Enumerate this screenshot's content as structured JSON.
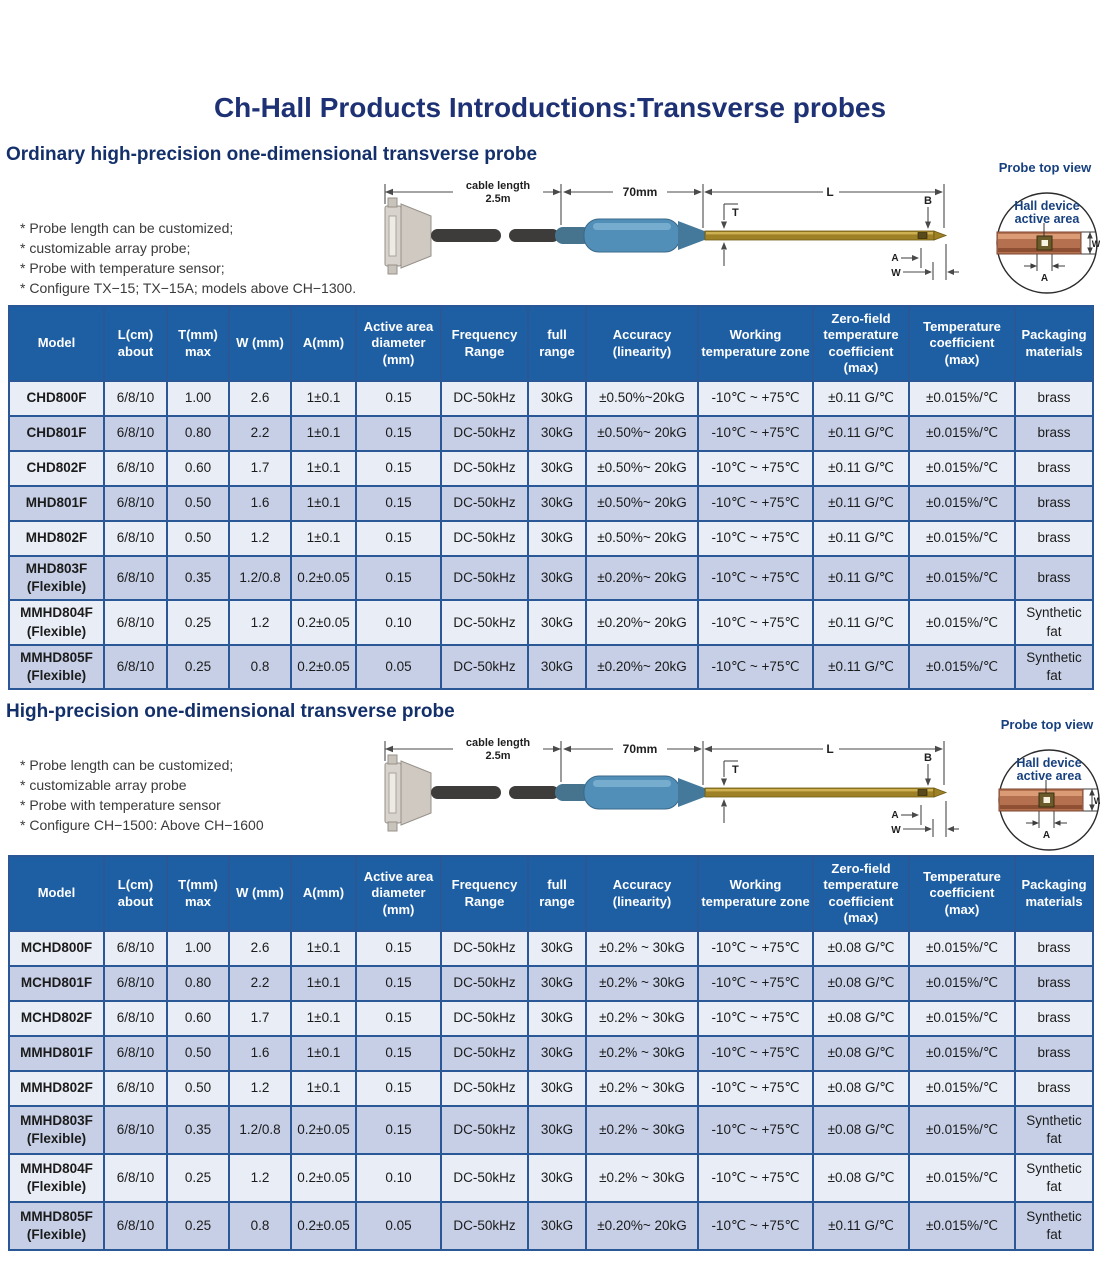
{
  "page": {
    "title": "Ch-Hall Products Introductions:Transverse probes"
  },
  "colors": {
    "title_navy": "#1d3174",
    "heading_navy": "#14306b",
    "table_header_blue": "#1e5fa4",
    "row_light": "#e9edf6",
    "row_dark": "#c6cfe6",
    "grid_blue": "#2a5796",
    "handle_blue": "#528fb8",
    "shaft_gold": "#9e8126",
    "copper_probe": "#b5714f"
  },
  "diagram": {
    "cable_length_line1": "cable length",
    "cable_length_line2": "2.5m",
    "handle_length": "70mm",
    "dim_L": "L",
    "dim_T": "T",
    "dim_B": "B",
    "dim_A": "A",
    "dim_W": "W",
    "top_view_label": "Probe top view",
    "hall_line1": "Hall device",
    "hall_line2": "active area",
    "tv_dim_W": "W",
    "tv_dim_A": "A"
  },
  "columns": [
    "Model",
    "L(cm) about",
    "T(mm) max",
    "W (mm)",
    "A(mm)",
    "Active area diameter (mm)",
    "Frequency Range",
    "full range",
    "Accuracy (linearity)",
    "Working temperature zone",
    "Zero-field temperature coefficient (max)",
    "Temperature coefficient (max)",
    "Packaging materials"
  ],
  "section1": {
    "heading": "Ordinary high-precision one-dimensional transverse probe",
    "notes": [
      "* Probe length can be customized;",
      "* customizable array probe;",
      "* Probe with temperature sensor;",
      "* Configure TX−15; TX−15A; models above CH−1300."
    ],
    "table": {
      "rows": [
        [
          "CHD800F",
          "6/8/10",
          "1.00",
          "2.6",
          "1±0.1",
          "0.15",
          "DC-50kHz",
          "30kG",
          "±0.50%~20kG",
          "-10℃ ~ +75℃",
          "±0.11 G/℃",
          "±0.015%/℃",
          "brass"
        ],
        [
          "CHD801F",
          "6/8/10",
          "0.80",
          "2.2",
          "1±0.1",
          "0.15",
          "DC-50kHz",
          "30kG",
          "±0.50%~ 20kG",
          "-10℃ ~ +75℃",
          "±0.11 G/℃",
          "±0.015%/℃",
          "brass"
        ],
        [
          "CHD802F",
          "6/8/10",
          "0.60",
          "1.7",
          "1±0.1",
          "0.15",
          "DC-50kHz",
          "30kG",
          "±0.50%~ 20kG",
          "-10℃ ~ +75℃",
          "±0.11 G/℃",
          "±0.015%/℃",
          "brass"
        ],
        [
          "MHD801F",
          "6/8/10",
          "0.50",
          "1.6",
          "1±0.1",
          "0.15",
          "DC-50kHz",
          "30kG",
          "±0.50%~ 20kG",
          "-10℃ ~ +75℃",
          "±0.11 G/℃",
          "±0.015%/℃",
          "brass"
        ],
        [
          "MHD802F",
          "6/8/10",
          "0.50",
          "1.2",
          "1±0.1",
          "0.15",
          "DC-50kHz",
          "30kG",
          "±0.50%~ 20kG",
          "-10℃ ~ +75℃",
          "±0.11 G/℃",
          "±0.015%/℃",
          "brass"
        ],
        [
          "MHD803F\n(Flexible)",
          "6/8/10",
          "0.35",
          "1.2/0.8",
          "0.2±0.05",
          "0.15",
          "DC-50kHz",
          "30kG",
          "±0.20%~ 20kG",
          "-10℃ ~ +75℃",
          "±0.11 G/℃",
          "±0.015%/℃",
          "brass"
        ],
        [
          "MMHD804F\n(Flexible)",
          "6/8/10",
          "0.25",
          "1.2",
          "0.2±0.05",
          "0.10",
          "DC-50kHz",
          "30kG",
          "±0.20%~ 20kG",
          "-10℃ ~ +75℃",
          "±0.11 G/℃",
          "±0.015%/℃",
          "Synthetic fat"
        ],
        [
          "MMHD805F\n(Flexible)",
          "6/8/10",
          "0.25",
          "0.8",
          "0.2±0.05",
          "0.05",
          "DC-50kHz",
          "30kG",
          "±0.20%~ 20kG",
          "-10℃ ~ +75℃",
          "±0.11 G/℃",
          "±0.015%/℃",
          "Synthetic fat"
        ]
      ]
    }
  },
  "section2": {
    "heading": "High-precision one-dimensional transverse probe",
    "notes": [
      "* Probe length can be customized;",
      "* customizable array probe",
      "* Probe with temperature sensor",
      "* Configure CH−1500: Above CH−1600"
    ],
    "table": {
      "rows": [
        [
          "MCHD800F",
          "6/8/10",
          "1.00",
          "2.6",
          "1±0.1",
          "0.15",
          "DC-50kHz",
          "30kG",
          "±0.2% ~ 30kG",
          "-10℃ ~ +75℃",
          "±0.08 G/℃",
          "±0.015%/℃",
          "brass"
        ],
        [
          "MCHD801F",
          "6/8/10",
          "0.80",
          "2.2",
          "1±0.1",
          "0.15",
          "DC-50kHz",
          "30kG",
          "±0.2% ~ 30kG",
          "-10℃ ~ +75℃",
          "±0.08 G/℃",
          "±0.015%/℃",
          "brass"
        ],
        [
          "MCHD802F",
          "6/8/10",
          "0.60",
          "1.7",
          "1±0.1",
          "0.15",
          "DC-50kHz",
          "30kG",
          "±0.2% ~ 30kG",
          "-10℃ ~ +75℃",
          "±0.08 G/℃",
          "±0.015%/℃",
          "brass"
        ],
        [
          "MMHD801F",
          "6/8/10",
          "0.50",
          "1.6",
          "1±0.1",
          "0.15",
          "DC-50kHz",
          "30kG",
          "±0.2% ~ 30kG",
          "-10℃ ~ +75℃",
          "±0.08 G/℃",
          "±0.015%/℃",
          "brass"
        ],
        [
          "MMHD802F",
          "6/8/10",
          "0.50",
          "1.2",
          "1±0.1",
          "0.15",
          "DC-50kHz",
          "30kG",
          "±0.2% ~ 30kG",
          "-10℃ ~ +75℃",
          "±0.08 G/℃",
          "±0.015%/℃",
          "brass"
        ],
        [
          "MMHD803F\n(Flexible)",
          "6/8/10",
          "0.35",
          "1.2/0.8",
          "0.2±0.05",
          "0.15",
          "DC-50kHz",
          "30kG",
          "±0.2% ~ 30kG",
          "-10℃ ~ +75℃",
          "±0.08 G/℃",
          "±0.015%/℃",
          "Synthetic fat"
        ],
        [
          "MMHD804F\n(Flexible)",
          "6/8/10",
          "0.25",
          "1.2",
          "0.2±0.05",
          "0.10",
          "DC-50kHz",
          "30kG",
          "±0.2% ~ 30kG",
          "-10℃ ~ +75℃",
          "±0.08 G/℃",
          "±0.015%/℃",
          "Synthetic fat"
        ],
        [
          "MMHD805F\n(Flexible)",
          "6/8/10",
          "0.25",
          "0.8",
          "0.2±0.05",
          "0.05",
          "DC-50kHz",
          "30kG",
          "±0.20%~ 20kG",
          "-10℃ ~ +75℃",
          "±0.11 G/℃",
          "±0.015%/℃",
          "Synthetic fat"
        ]
      ]
    }
  }
}
